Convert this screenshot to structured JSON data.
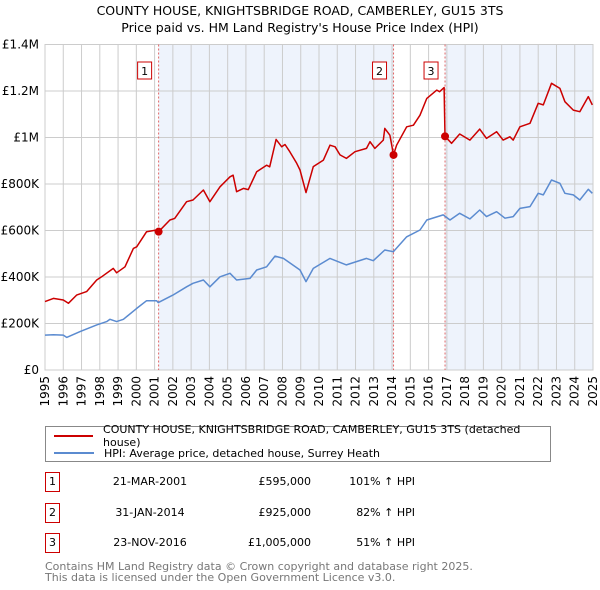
{
  "title": "COUNTY HOUSE, KNIGHTSBRIDGE ROAD, CAMBERLEY, GU15 3TS",
  "subtitle": "Price paid vs. HM Land Registry's House Price Index (HPI)",
  "legend": {
    "property": "COUNTY HOUSE, KNIGHTSBRIDGE ROAD, CAMBERLEY, GU15 3TS (detached house)",
    "hpi": "HPI: Average price, detached house, Surrey Heath"
  },
  "sales": [
    {
      "num": "1",
      "date": "21-MAR-2001",
      "price": "£595,000",
      "hpi": "101% ↑ HPI"
    },
    {
      "num": "2",
      "date": "31-JAN-2014",
      "price": "£925,000",
      "hpi": "82% ↑ HPI"
    },
    {
      "num": "3",
      "date": "23-NOV-2016",
      "price": "£1,005,000",
      "hpi": "51% ↑ HPI"
    }
  ],
  "footer": [
    "Contains HM Land Registry data © Crown copyright and database right 2025.",
    "This data is licensed under the Open Government Licence v3.0."
  ],
  "colors": {
    "property": "#cc0000",
    "hpi": "#5b8bd0",
    "shade": "#eef3fc"
  },
  "chart_data": {
    "type": "line",
    "xlim": [
      1995,
      2025
    ],
    "ylim": [
      0,
      1400000
    ],
    "yticks": [
      {
        "v": 0,
        "label": "£0"
      },
      {
        "v": 200000,
        "label": "£200K"
      },
      {
        "v": 400000,
        "label": "£400K"
      },
      {
        "v": 600000,
        "label": "£600K"
      },
      {
        "v": 800000,
        "label": "£800K"
      },
      {
        "v": 1000000,
        "label": "£1M"
      },
      {
        "v": 1200000,
        "label": "£1.2M"
      },
      {
        "v": 1400000,
        "label": "£1.4M"
      }
    ],
    "xticks": [
      "1995",
      "1996",
      "1997",
      "1998",
      "1999",
      "2000",
      "2001",
      "2002",
      "2003",
      "2004",
      "2005",
      "2006",
      "2007",
      "2008",
      "2009",
      "2010",
      "2011",
      "2012",
      "2013",
      "2014",
      "2015",
      "2016",
      "2017",
      "2018",
      "2019",
      "2020",
      "2021",
      "2022",
      "2023",
      "2024",
      "2025"
    ],
    "sale_markers": [
      {
        "num": "1",
        "x": 2001.22,
        "y": 595000
      },
      {
        "num": "2",
        "x": 2014.08,
        "y": 925000
      },
      {
        "num": "3",
        "x": 2016.9,
        "y": 1005000
      }
    ],
    "series": [
      {
        "name": "COUNTY HOUSE, KNIGHTSBRIDGE ROAD, CAMBERLEY, GU15 3TS (detached house)",
        "points": [
          [
            1995.0,
            294
          ],
          [
            1995.46,
            308
          ],
          [
            1996.0,
            301
          ],
          [
            1996.28,
            287
          ],
          [
            1996.73,
            322
          ],
          [
            1997.28,
            337
          ],
          [
            1997.83,
            387
          ],
          [
            1998.1,
            401
          ],
          [
            1998.74,
            437
          ],
          [
            1998.92,
            418
          ],
          [
            1999.38,
            444
          ],
          [
            1999.84,
            523
          ],
          [
            2000.02,
            530
          ],
          [
            2000.56,
            595
          ],
          [
            2001.11,
            602
          ],
          [
            2001.22,
            595
          ],
          [
            2001.84,
            645
          ],
          [
            2002.1,
            652
          ],
          [
            2002.75,
            724
          ],
          [
            2003.1,
            731
          ],
          [
            2003.67,
            774
          ],
          [
            2004.03,
            724
          ],
          [
            2004.58,
            788
          ],
          [
            2005.13,
            831
          ],
          [
            2005.3,
            838
          ],
          [
            2005.49,
            767
          ],
          [
            2005.86,
            781
          ],
          [
            2006.13,
            776
          ],
          [
            2006.59,
            853
          ],
          [
            2007.13,
            881
          ],
          [
            2007.3,
            874
          ],
          [
            2007.65,
            992
          ],
          [
            2007.96,
            960
          ],
          [
            2008.14,
            970
          ],
          [
            2008.4,
            939
          ],
          [
            2008.78,
            889
          ],
          [
            2008.96,
            860
          ],
          [
            2009.29,
            763
          ],
          [
            2009.69,
            875
          ],
          [
            2010.24,
            903
          ],
          [
            2010.6,
            967
          ],
          [
            2010.88,
            960
          ],
          [
            2011.15,
            925
          ],
          [
            2011.5,
            910
          ],
          [
            2011.97,
            939
          ],
          [
            2012.6,
            953
          ],
          [
            2012.79,
            982
          ],
          [
            2013.06,
            953
          ],
          [
            2013.52,
            989
          ],
          [
            2013.6,
            1039
          ],
          [
            2013.88,
            1010
          ],
          [
            2014.08,
            925
          ],
          [
            2014.25,
            967
          ],
          [
            2014.8,
            1046
          ],
          [
            2015.17,
            1053
          ],
          [
            2015.53,
            1096
          ],
          [
            2015.9,
            1168
          ],
          [
            2016.45,
            1204
          ],
          [
            2016.6,
            1197
          ],
          [
            2016.85,
            1215
          ],
          [
            2016.9,
            1005
          ],
          [
            2017.26,
            975
          ],
          [
            2017.7,
            1015
          ],
          [
            2018.26,
            989
          ],
          [
            2018.8,
            1036
          ],
          [
            2019.17,
            996
          ],
          [
            2019.72,
            1025
          ],
          [
            2020.08,
            989
          ],
          [
            2020.45,
            1003
          ],
          [
            2020.63,
            989
          ],
          [
            2021.0,
            1046
          ],
          [
            2021.55,
            1061
          ],
          [
            2022.0,
            1147
          ],
          [
            2022.28,
            1140
          ],
          [
            2022.73,
            1233
          ],
          [
            2023.19,
            1211
          ],
          [
            2023.46,
            1154
          ],
          [
            2023.92,
            1118
          ],
          [
            2024.28,
            1111
          ],
          [
            2024.74,
            1176
          ],
          [
            2024.96,
            1140
          ]
        ]
      },
      {
        "name": "HPI: Average price, detached house, Surrey Heath",
        "points": [
          [
            1995.0,
            150
          ],
          [
            1995.46,
            152
          ],
          [
            1996.0,
            150
          ],
          [
            1996.19,
            140
          ],
          [
            1996.92,
            165
          ],
          [
            1997.83,
            194
          ],
          [
            1998.38,
            208
          ],
          [
            1998.56,
            218
          ],
          [
            1998.92,
            208
          ],
          [
            1999.29,
            218
          ],
          [
            2000.02,
            265
          ],
          [
            2000.56,
            298
          ],
          [
            2001.11,
            298
          ],
          [
            2001.2,
            290
          ],
          [
            2002.0,
            322
          ],
          [
            2002.75,
            358
          ],
          [
            2003.1,
            373
          ],
          [
            2003.67,
            387
          ],
          [
            2004.03,
            358
          ],
          [
            2004.58,
            401
          ],
          [
            2005.13,
            416
          ],
          [
            2005.49,
            387
          ],
          [
            2006.22,
            394
          ],
          [
            2006.59,
            430
          ],
          [
            2007.13,
            444
          ],
          [
            2007.59,
            490
          ],
          [
            2008.05,
            480
          ],
          [
            2008.96,
            430
          ],
          [
            2009.29,
            380
          ],
          [
            2009.69,
            437
          ],
          [
            2010.6,
            480
          ],
          [
            2011.5,
            452
          ],
          [
            2012.6,
            480
          ],
          [
            2012.97,
            470
          ],
          [
            2013.6,
            516
          ],
          [
            2014.07,
            509
          ],
          [
            2014.8,
            573
          ],
          [
            2015.53,
            602
          ],
          [
            2015.9,
            645
          ],
          [
            2016.8,
            667
          ],
          [
            2017.17,
            645
          ],
          [
            2017.7,
            674
          ],
          [
            2018.26,
            650
          ],
          [
            2018.8,
            688
          ],
          [
            2019.17,
            660
          ],
          [
            2019.72,
            681
          ],
          [
            2020.18,
            653
          ],
          [
            2020.63,
            660
          ],
          [
            2021.0,
            695
          ],
          [
            2021.55,
            703
          ],
          [
            2022.0,
            760
          ],
          [
            2022.28,
            753
          ],
          [
            2022.73,
            817
          ],
          [
            2023.19,
            803
          ],
          [
            2023.46,
            760
          ],
          [
            2023.92,
            753
          ],
          [
            2024.28,
            731
          ],
          [
            2024.74,
            777
          ],
          [
            2024.96,
            760
          ]
        ]
      }
    ],
    "value_unit_multiplier": 1000
  }
}
